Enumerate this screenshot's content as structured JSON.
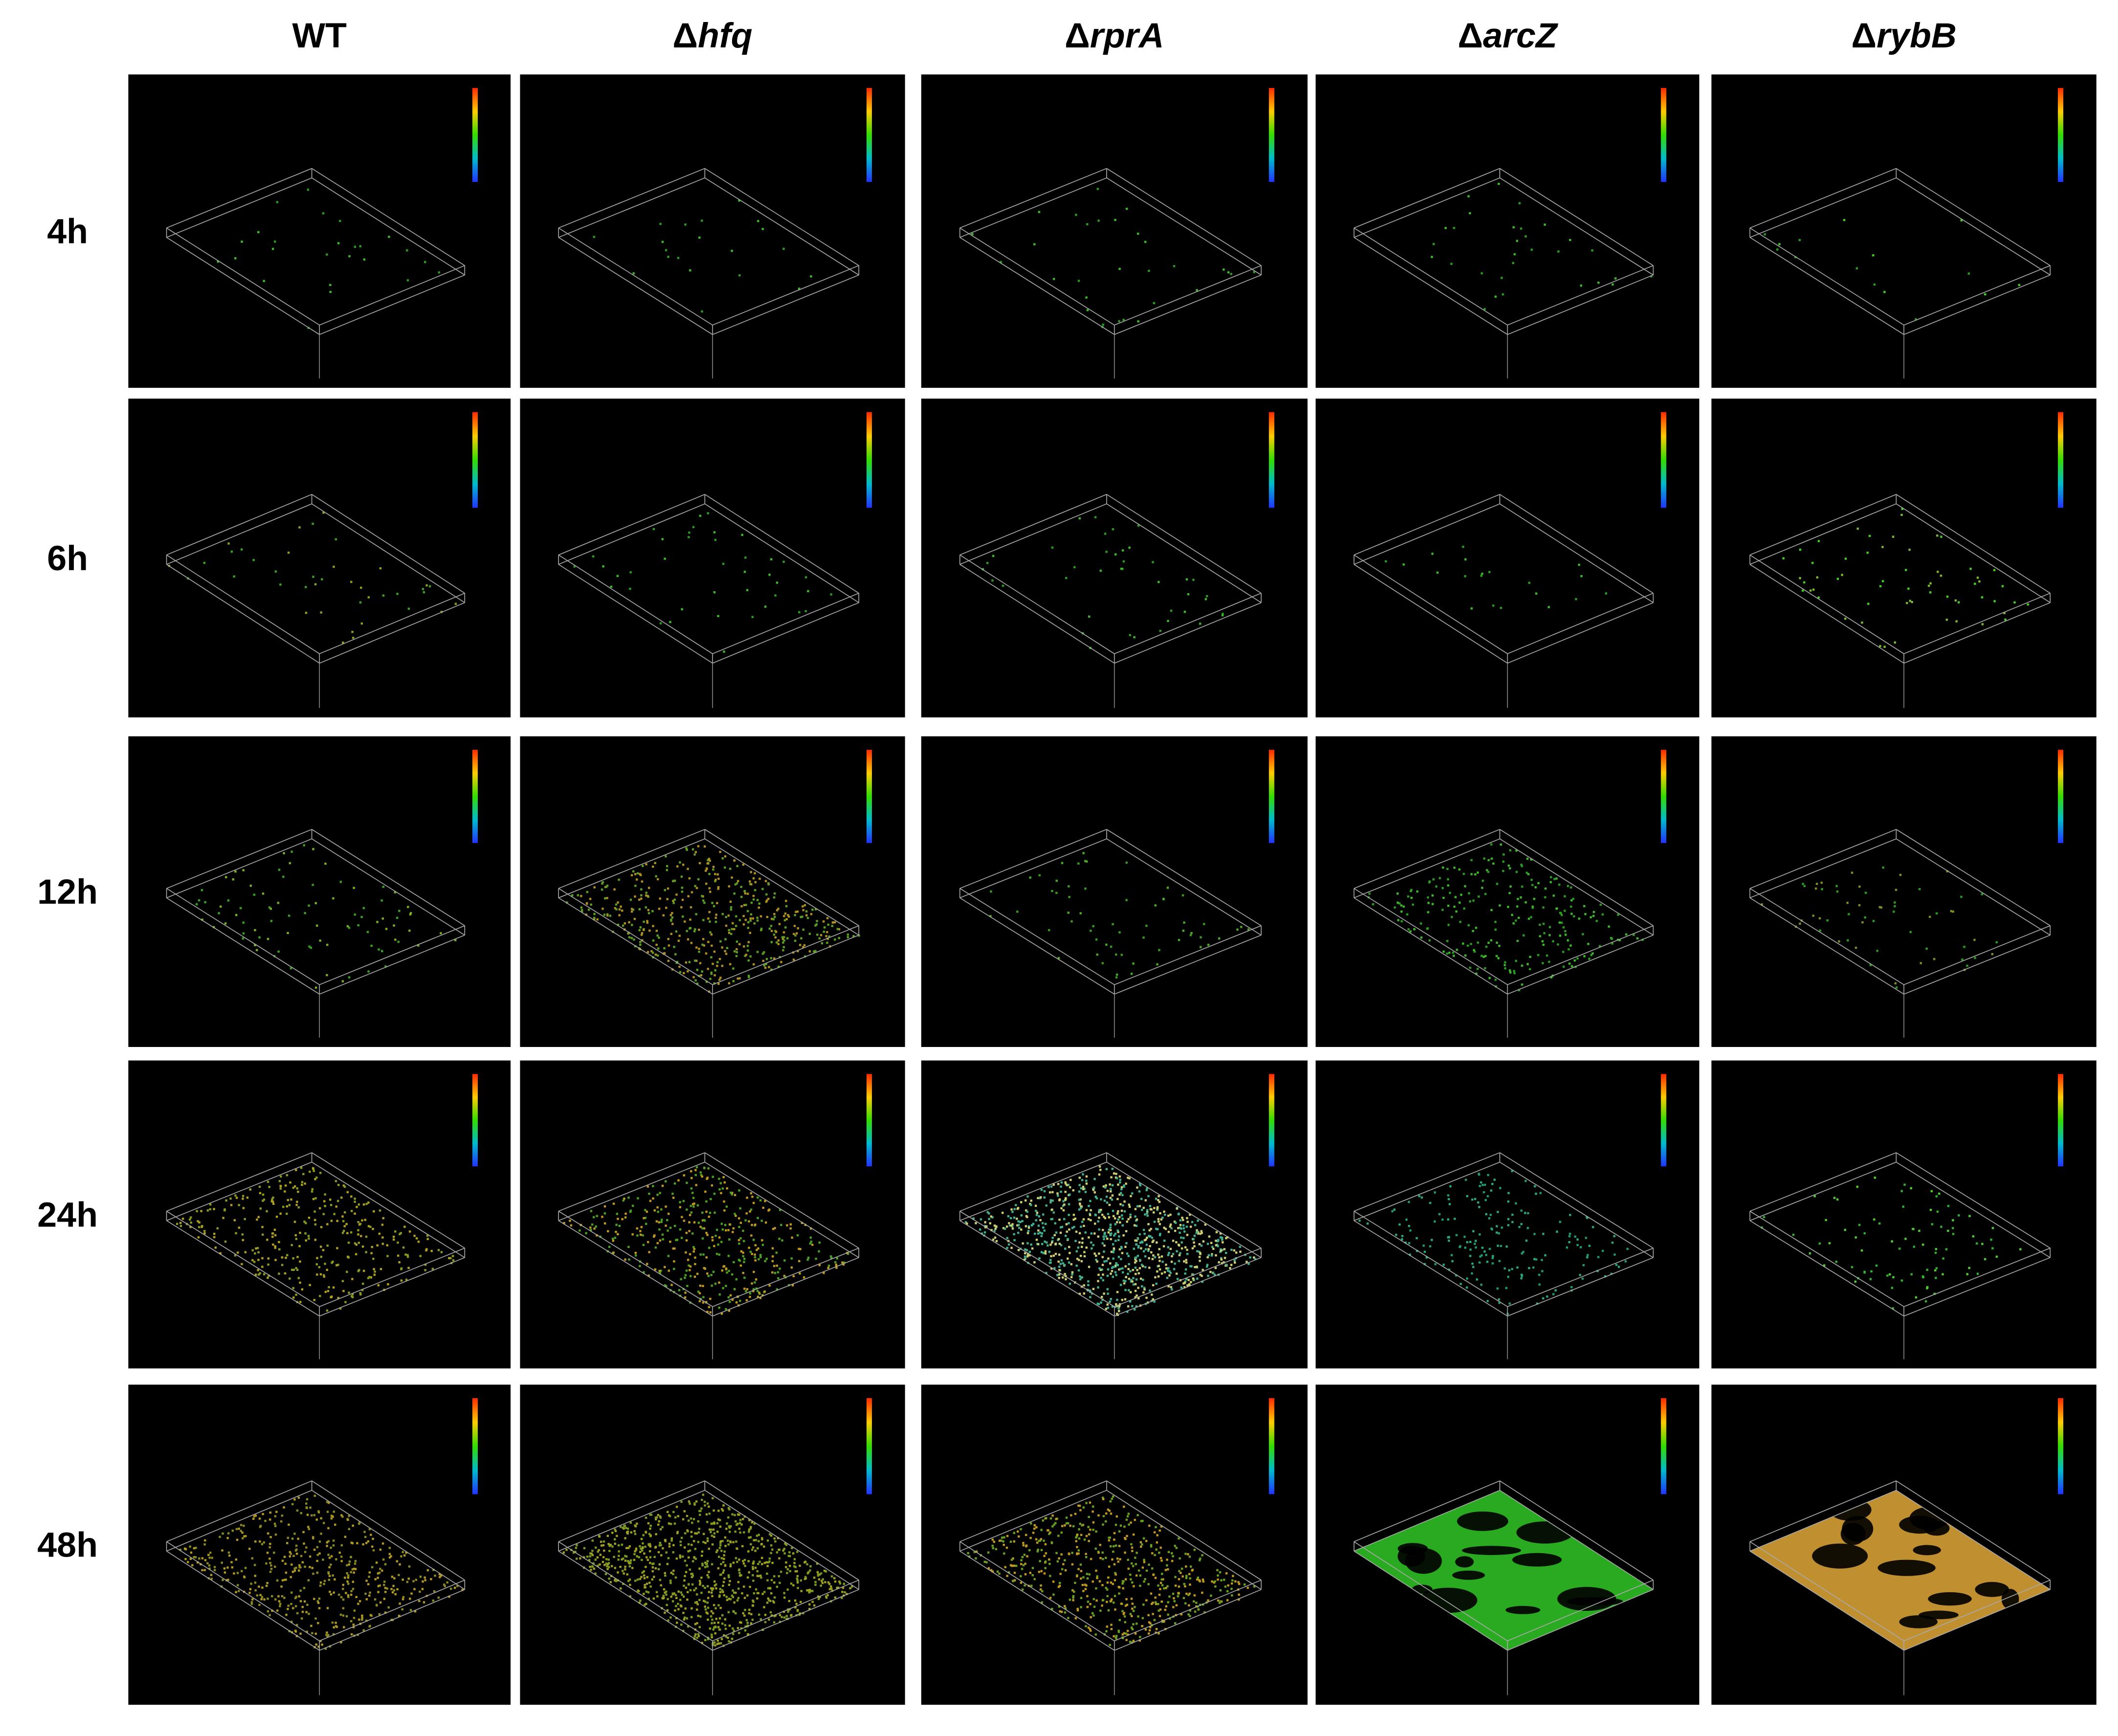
{
  "columns": [
    {
      "label": "WT"
    },
    {
      "prefix": "Δ",
      "gene": "hfq"
    },
    {
      "prefix": "Δ",
      "gene": "rprA"
    },
    {
      "prefix": "Δ",
      "gene": "arcZ"
    },
    {
      "prefix": "Δ",
      "gene": "rybB"
    }
  ],
  "rows": [
    "4h",
    "6h",
    "12h",
    "24h",
    "48h"
  ]
}
